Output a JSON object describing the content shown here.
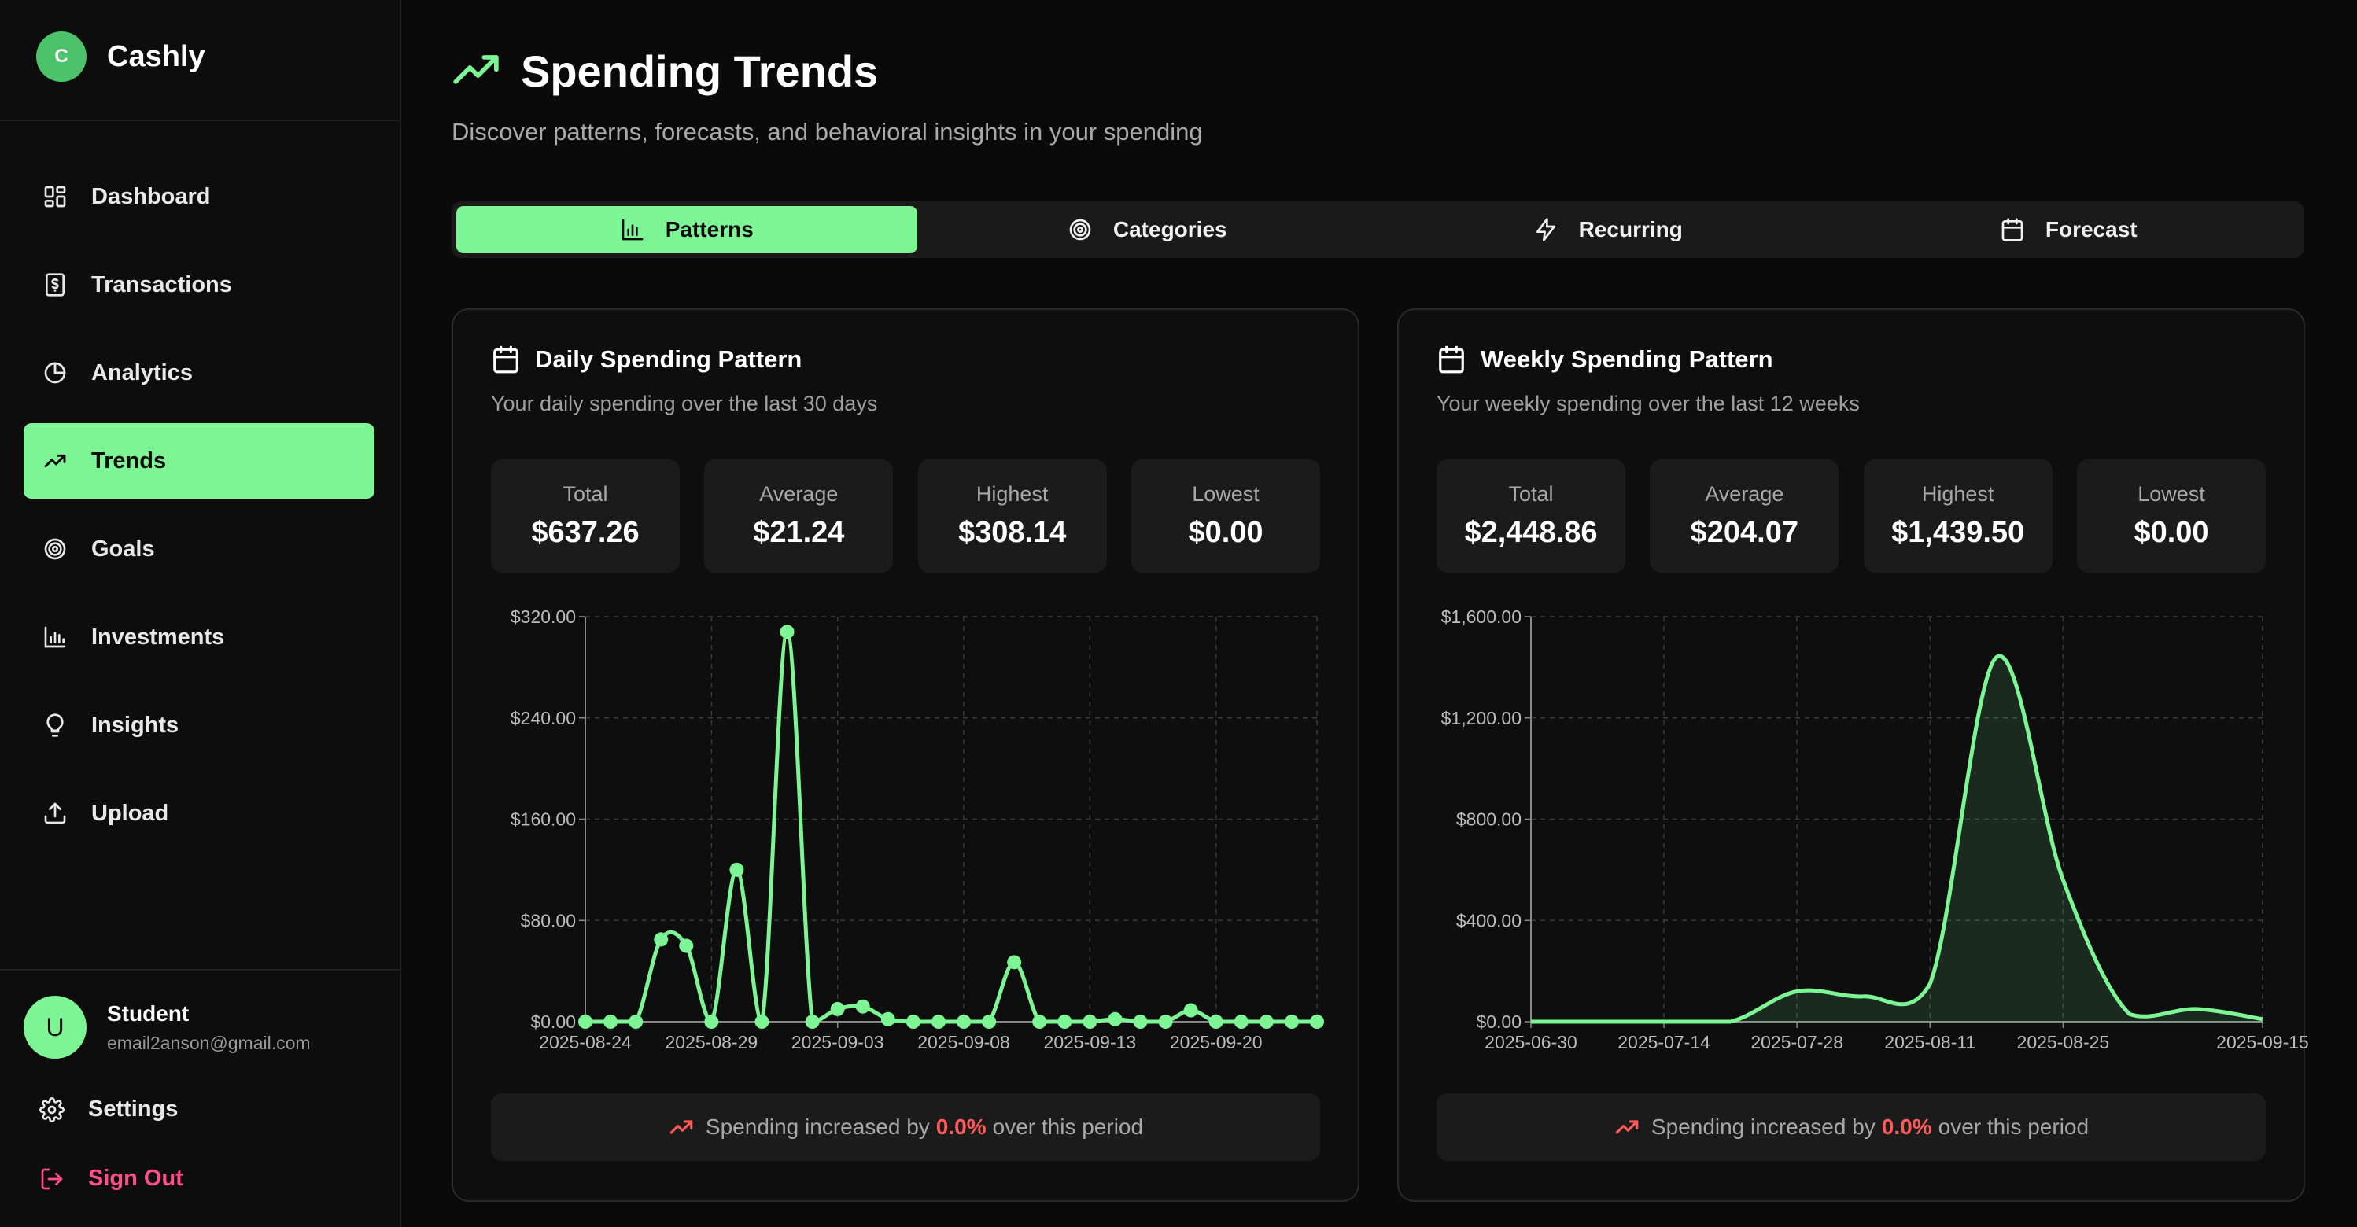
{
  "app": {
    "logo_letter": "C",
    "name": "Cashly"
  },
  "sidebar": {
    "items": [
      {
        "label": "Dashboard",
        "icon": "dashboard-grid-icon"
      },
      {
        "label": "Transactions",
        "icon": "receipt-dollar-icon"
      },
      {
        "label": "Analytics",
        "icon": "pie-chart-icon"
      },
      {
        "label": "Trends",
        "icon": "trending-up-icon",
        "active": true
      },
      {
        "label": "Goals",
        "icon": "target-icon"
      },
      {
        "label": "Investments",
        "icon": "bar-chart-icon"
      },
      {
        "label": "Insights",
        "icon": "lightbulb-icon"
      },
      {
        "label": "Upload",
        "icon": "upload-icon"
      }
    ],
    "user": {
      "avatar_letter": "U",
      "name": "Student",
      "email": "email2anson@gmail.com"
    },
    "settings_label": "Settings",
    "signout_label": "Sign Out"
  },
  "page": {
    "title": "Spending Trends",
    "subtitle": "Discover patterns, forecasts, and behavioral insights in your spending"
  },
  "tabs": [
    {
      "label": "Patterns",
      "icon": "bar-chart-icon",
      "active": true
    },
    {
      "label": "Categories",
      "icon": "target-icon"
    },
    {
      "label": "Recurring",
      "icon": "lightning-icon"
    },
    {
      "label": "Forecast",
      "icon": "calendar-icon"
    }
  ],
  "colors": {
    "accent": "#7df595",
    "background": "#0a0a0a",
    "card": "#0e0e0e",
    "negative": "#ff5a5a",
    "signout": "#ff4f8b"
  },
  "daily": {
    "title": "Daily Spending Pattern",
    "description": "Your daily spending over the last 30 days",
    "stats": [
      {
        "label": "Total",
        "value": "$637.26"
      },
      {
        "label": "Average",
        "value": "$21.24"
      },
      {
        "label": "Highest",
        "value": "$308.14"
      },
      {
        "label": "Lowest",
        "value": "$0.00"
      }
    ],
    "note": {
      "prefix": "Spending increased by",
      "pct": "0.0%",
      "suffix": "over this period"
    }
  },
  "weekly": {
    "title": "Weekly Spending Pattern",
    "description": "Your weekly spending over the last 12 weeks",
    "stats": [
      {
        "label": "Total",
        "value": "$2,448.86"
      },
      {
        "label": "Average",
        "value": "$204.07"
      },
      {
        "label": "Highest",
        "value": "$1,439.50"
      },
      {
        "label": "Lowest",
        "value": "$0.00"
      }
    ],
    "note": {
      "prefix": "Spending increased by",
      "pct": "0.0%",
      "suffix": "over this period"
    }
  },
  "chart_data": [
    {
      "type": "line",
      "title": "Daily Spending Pattern",
      "ylim": [
        0,
        320
      ],
      "yticks": [
        "$0.00",
        "$80.00",
        "$160.00",
        "$240.00",
        "$320.00"
      ],
      "ytick_values": [
        0,
        80,
        160,
        240,
        320
      ],
      "xtick_labels": [
        "2025-08-24",
        "2025-08-29",
        "2025-09-03",
        "2025-09-08",
        "2025-09-13",
        "2025-09-20"
      ],
      "xtick_index": [
        0,
        5,
        10,
        15,
        20,
        25
      ],
      "values": [
        0,
        0,
        0,
        65,
        60,
        0,
        120,
        0,
        308,
        0,
        10,
        12,
        2,
        0,
        0,
        0,
        0,
        47,
        0,
        0,
        0,
        2,
        0,
        0,
        9,
        0,
        0,
        0,
        0,
        0
      ],
      "series": [
        {
          "values": [
            0,
            0,
            0,
            65,
            60,
            0,
            120,
            0,
            308,
            0,
            10,
            12,
            2,
            0,
            0,
            0,
            0,
            47,
            0,
            0,
            0,
            2,
            0,
            0,
            9,
            0,
            0,
            0,
            0,
            0
          ]
        }
      ],
      "grid": true,
      "color": "#7df595"
    },
    {
      "type": "area",
      "title": "Weekly Spending Pattern",
      "ylim": [
        0,
        1600
      ],
      "yticks": [
        "$0.00",
        "$400.00",
        "$800.00",
        "$1,200.00",
        "$1,600.00"
      ],
      "ytick_values": [
        0,
        400,
        800,
        1200,
        1600
      ],
      "x": [
        "2025-06-30",
        "2025-07-07",
        "2025-07-14",
        "2025-07-21",
        "2025-07-28",
        "2025-08-04",
        "2025-08-11",
        "2025-08-18",
        "2025-08-25",
        "2025-09-01",
        "2025-09-08",
        "2025-09-15"
      ],
      "xtick_labels": [
        "2025-06-30",
        "2025-07-14",
        "2025-07-28",
        "2025-08-11",
        "2025-08-25",
        "2025-09-15"
      ],
      "xtick_index": [
        0,
        2,
        4,
        6,
        8,
        11
      ],
      "values": [
        0,
        0,
        0,
        0,
        120,
        100,
        150,
        1440,
        560,
        30,
        50,
        10
      ],
      "series": [
        {
          "values": [
            0,
            0,
            0,
            0,
            120,
            100,
            150,
            1440,
            560,
            30,
            50,
            10
          ]
        }
      ],
      "grid": true,
      "color": "#7df595"
    }
  ]
}
